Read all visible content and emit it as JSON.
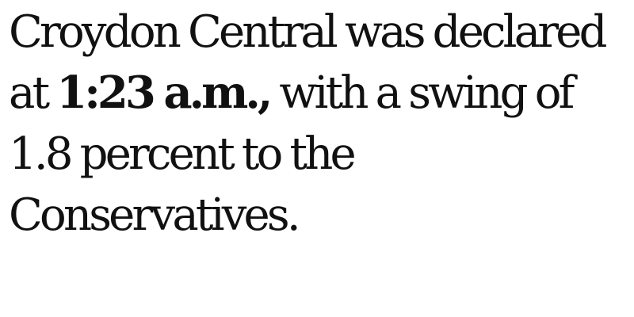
{
  "article": {
    "text_before": "Croydon Central was declared at ",
    "emphasis": "1:23 a.m.,",
    "text_after": " with a swing of 1.8 percent to the Conservatives."
  },
  "colors": {
    "background": "#ffffff",
    "text": "#111111"
  }
}
